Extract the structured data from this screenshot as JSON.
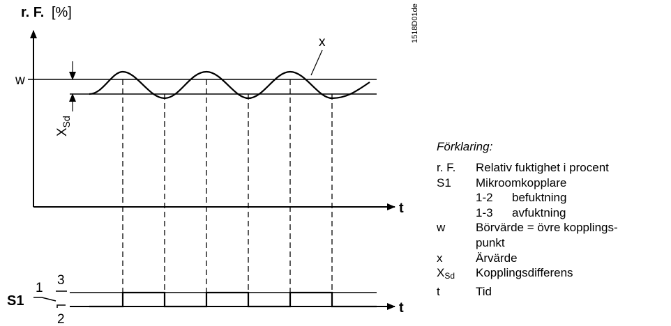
{
  "diagram": {
    "y_axis_label_bold": "r. F.",
    "y_axis_label_unit": "[%]",
    "time_label": "t",
    "setpoint_label": "w",
    "curve_label": "x",
    "diff_label_main": "X",
    "diff_label_sub": "Sd",
    "figure_code": "1518D01de",
    "switch_label": "S1",
    "switch_terminal_1": "1",
    "switch_terminal_2": "2",
    "switch_terminal_3": "3"
  },
  "legend": {
    "title": "Förklaring:",
    "rows": [
      {
        "symbol": "r. F.",
        "text": "Relativ fuktighet i procent"
      },
      {
        "symbol": "S1",
        "text": "Mikroomkopplare"
      },
      {
        "code": "1-2",
        "text": "befuktning"
      },
      {
        "code": "1-3",
        "text": "avfuktning"
      },
      {
        "symbol": "w",
        "text": "Börvärde = övre kopplings-"
      },
      {
        "symbol": "",
        "text": "punkt"
      },
      {
        "symbol": "x",
        "text": "Ärvärde"
      },
      {
        "symbol_main": "X",
        "symbol_sub": "Sd",
        "text": "Kopplingsdifferens"
      },
      {
        "symbol": "t",
        "text": "Tid"
      }
    ]
  }
}
